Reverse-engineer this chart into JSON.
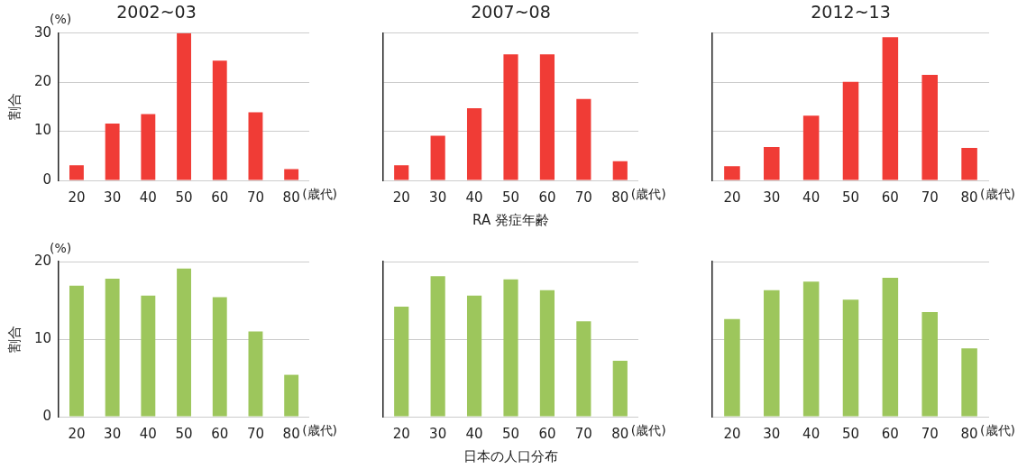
{
  "chart_data": [
    {
      "type": "bar",
      "title": "2002~03",
      "ylabel": "割合",
      "categories": [
        "20",
        "30",
        "40",
        "50",
        "60",
        "70",
        "80"
      ],
      "values": [
        3.1,
        11.6,
        13.5,
        30,
        24.4,
        13.9,
        2.3
      ],
      "color": "#f03c36",
      "ylim": [
        0,
        30
      ],
      "yticks": [
        0,
        10,
        20,
        30
      ],
      "grid": "y",
      "legend": false,
      "annotations": [
        "(%)",
        "(歳代)"
      ]
    },
    {
      "type": "bar",
      "title": "2007~08",
      "xlabel": "RA 発症年齢",
      "categories": [
        "20",
        "30",
        "40",
        "50",
        "60",
        "70",
        "80"
      ],
      "values": [
        3.1,
        9.1,
        14.7,
        25.7,
        25.7,
        16.6,
        3.9
      ],
      "color": "#f03c36",
      "ylim": [
        0,
        30
      ],
      "yticks": [
        0,
        10,
        20,
        30
      ],
      "grid": "y",
      "legend": false,
      "tick_labels": "x",
      "annotations": [
        "(歳代)"
      ]
    },
    {
      "type": "bar",
      "title": "2012~13",
      "categories": [
        "20",
        "30",
        "40",
        "50",
        "60",
        "70",
        "80"
      ],
      "values": [
        2.9,
        6.8,
        13.2,
        20.1,
        29.2,
        21.5,
        6.6
      ],
      "color": "#f03c36",
      "ylim": [
        0,
        30
      ],
      "yticks": [
        0,
        10,
        20,
        30
      ],
      "grid": "y",
      "legend": false,
      "tick_labels": "x",
      "annotations": [
        "(歳代)"
      ]
    },
    {
      "type": "bar",
      "ylabel": "割合",
      "categories": [
        "20",
        "30",
        "40",
        "50",
        "60",
        "70",
        "80"
      ],
      "values": [
        16.9,
        17.8,
        15.6,
        19.1,
        15.4,
        11.0,
        5.4
      ],
      "color": "#9dc65c",
      "ylim": [
        0,
        20
      ],
      "yticks": [
        0,
        10,
        20
      ],
      "grid": "y",
      "legend": false,
      "annotations": [
        "(%)",
        "(歳代)"
      ]
    },
    {
      "type": "bar",
      "xlabel": "日本の人口分布",
      "categories": [
        "20",
        "30",
        "40",
        "50",
        "60",
        "70",
        "80"
      ],
      "values": [
        14.2,
        18.1,
        15.6,
        17.7,
        16.3,
        12.3,
        7.2
      ],
      "color": "#9dc65c",
      "ylim": [
        0,
        20
      ],
      "yticks": [
        0,
        10,
        20
      ],
      "grid": "y",
      "legend": false,
      "tick_labels": "x",
      "annotations": [
        "(歳代)"
      ]
    },
    {
      "type": "bar",
      "categories": [
        "20",
        "30",
        "40",
        "50",
        "60",
        "70",
        "80"
      ],
      "values": [
        12.6,
        16.3,
        17.4,
        15.1,
        17.9,
        13.5,
        8.8
      ],
      "color": "#9dc65c",
      "ylim": [
        0,
        20
      ],
      "yticks": [
        0,
        10,
        20
      ],
      "grid": "y",
      "legend": false,
      "tick_labels": "x",
      "annotations": [
        "(歳代)"
      ]
    }
  ]
}
